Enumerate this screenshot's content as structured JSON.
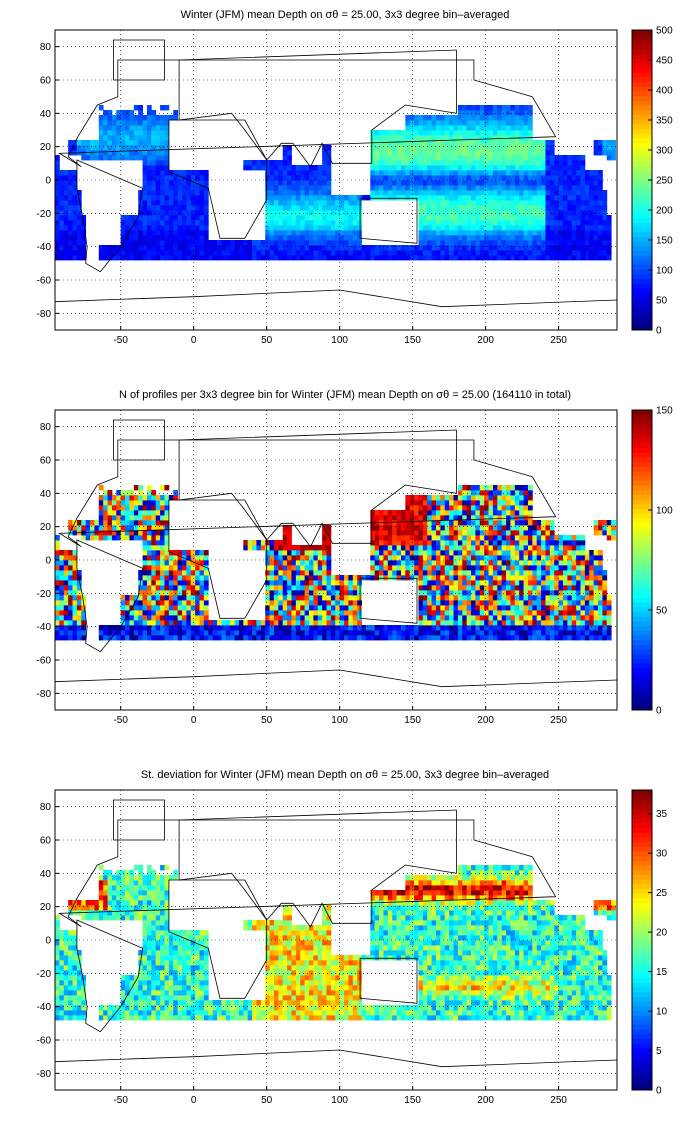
{
  "figure": {
    "panels": [
      {
        "title": "Winter (JFM) mean Depth on σθ = 25.00, 3x3 degree bin–averaged",
        "colorbar": {
          "min": 0,
          "max": 500,
          "ticks": [
            "0",
            "50",
            "100",
            "150",
            "200",
            "250",
            "300",
            "350",
            "400",
            "450",
            "500"
          ]
        },
        "xticks": [
          "-50",
          "0",
          "50",
          "100",
          "150",
          "200",
          "250"
        ],
        "yticks": [
          "80",
          "60",
          "40",
          "20",
          "0",
          "-20",
          "-40",
          "-60",
          "-80"
        ]
      },
      {
        "title": "N of profiles per 3x3 degree bin for Winter (JFM) mean Depth on σθ = 25.00 (164110 in total)",
        "colorbar": {
          "min": 0,
          "max": 150,
          "ticks": [
            "0",
            "50",
            "100",
            "150"
          ]
        },
        "xticks": [
          "-50",
          "0",
          "50",
          "100",
          "150",
          "200",
          "250"
        ],
        "yticks": [
          "80",
          "60",
          "40",
          "20",
          "0",
          "-20",
          "-40",
          "-60",
          "-80"
        ]
      },
      {
        "title": "St. deviation for Winter (JFM) mean Depth on σθ = 25.00, 3x3 degree bin–averaged",
        "colorbar": {
          "min": 0,
          "max": 38,
          "ticks": [
            "0",
            "5",
            "10",
            "15",
            "20",
            "25",
            "30",
            "35"
          ]
        },
        "xticks": [
          "-50",
          "0",
          "50",
          "100",
          "150",
          "200",
          "250"
        ],
        "yticks": [
          "80",
          "60",
          "40",
          "20",
          "0",
          "-20",
          "-40",
          "-60",
          "-80"
        ]
      }
    ]
  },
  "chart_data": [
    {
      "type": "heatmap",
      "title": "Winter (JFM) mean Depth on σθ = 25.00, 3x3 degree bin–averaged",
      "xlim": [
        -95,
        290
      ],
      "ylim": [
        -90,
        90
      ],
      "colormap": "jet",
      "clim": [
        0,
        500
      ],
      "grid": true,
      "fields": [
        {
          "lon": 160,
          "lat": 15,
          "value": 310
        },
        {
          "lon": 200,
          "lat": 15,
          "value": 280
        },
        {
          "lon": 170,
          "lat": -20,
          "value": 260
        },
        {
          "lon": 70,
          "lat": -25,
          "value": 210
        },
        {
          "lon": -30,
          "lat": 25,
          "value": 140
        },
        {
          "lon": -20,
          "lat": -25,
          "value": 130
        },
        {
          "lon": 90,
          "lat": 0,
          "value": 100
        },
        {
          "lon": 5,
          "lat": 0,
          "value": 70
        }
      ]
    },
    {
      "type": "heatmap",
      "title": "N of profiles per 3x3 degree bin for Winter (JFM) mean Depth on σθ = 25.00 (164110 in total)",
      "xlim": [
        -95,
        290
      ],
      "ylim": [
        -90,
        90
      ],
      "colormap": "jet",
      "clim": [
        0,
        150
      ],
      "grid": true,
      "total": 164110
    },
    {
      "type": "heatmap",
      "title": "St. deviation for Winter (JFM) mean Depth on σθ = 25.00, 3x3 degree bin–averaged",
      "xlim": [
        -95,
        290
      ],
      "ylim": [
        -90,
        90
      ],
      "colormap": "jet",
      "clim": [
        0,
        38
      ],
      "grid": true,
      "fields": [
        {
          "lon": 160,
          "lat": 28,
          "value": 35
        },
        {
          "lon": -75,
          "lat": 25,
          "value": 30
        },
        {
          "lon": 160,
          "lat": -25,
          "value": 30
        },
        {
          "lon": 75,
          "lat": -22,
          "value": 32
        },
        {
          "lon": 190,
          "lat": 0,
          "value": 21
        },
        {
          "lon": -20,
          "lat": -20,
          "value": 12
        }
      ]
    }
  ]
}
